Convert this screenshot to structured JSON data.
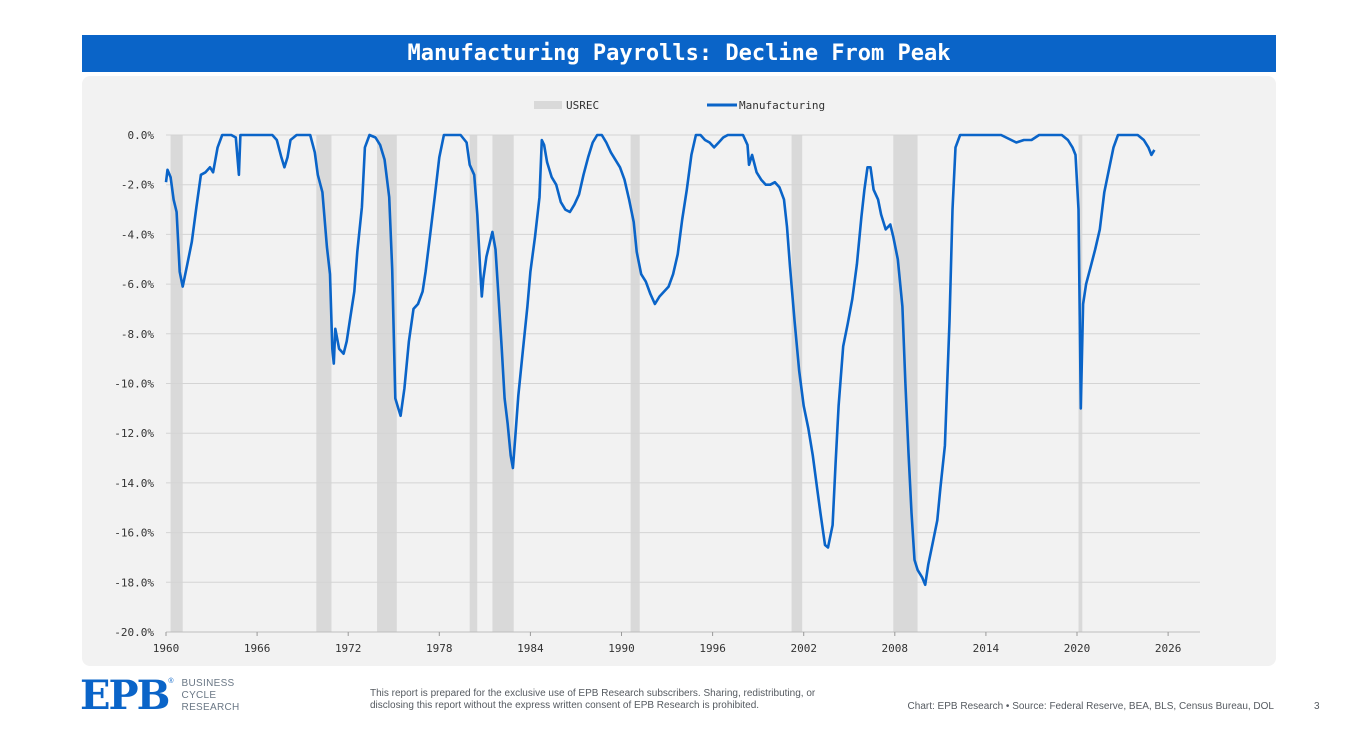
{
  "header": {
    "title": "Manufacturing Payrolls: Decline From Peak"
  },
  "footer": {
    "logo_text": "EPB",
    "logo_mark": "®",
    "logo_subtitle": [
      "BUSINESS",
      "CYCLE",
      "RESEARCH"
    ],
    "disclaimer": "This report is prepared for the exclusive use of EPB Research subscribers. Sharing, redistributing, or disclosing this report without the express written consent of EPB Research is prohibited.",
    "source": "Chart: EPB Research  •  Source: Federal Reserve, BEA, BLS, Census Bureau, DOL",
    "page_number": "3"
  },
  "colors": {
    "accent": "#0a64c8",
    "line": "#0a64c8",
    "recession": "#d9d9d9",
    "panel": "#f2f2f2"
  },
  "chart_data": {
    "type": "line",
    "title": "Manufacturing Payrolls: Decline From Peak",
    "xlabel": "",
    "ylabel": "",
    "xlim": [
      1960,
      2028.1
    ],
    "ylim": [
      -20,
      0
    ],
    "x_ticks": [
      "1960",
      "1966",
      "1972",
      "1978",
      "1984",
      "1990",
      "1996",
      "2002",
      "2008",
      "2014",
      "2020",
      "2026"
    ],
    "y_ticks": [
      "0.0%",
      "-2.0%",
      "-4.0%",
      "-6.0%",
      "-8.0%",
      "-10.0%",
      "-12.0%",
      "-14.0%",
      "-16.0%",
      "-18.0%",
      "-20.0%"
    ],
    "grid": true,
    "legend": {
      "position": "top",
      "entries": [
        "USREC",
        "Manufacturing"
      ]
    },
    "recessions": [
      {
        "start": 1960.3,
        "end": 1961.1
      },
      {
        "start": 1969.9,
        "end": 1970.9
      },
      {
        "start": 1973.9,
        "end": 1975.2
      },
      {
        "start": 1980.0,
        "end": 1980.5
      },
      {
        "start": 1981.5,
        "end": 1982.9
      },
      {
        "start": 1990.6,
        "end": 1991.2
      },
      {
        "start": 2001.2,
        "end": 2001.9
      },
      {
        "start": 2007.9,
        "end": 2009.5
      },
      {
        "start": 2020.1,
        "end": 2020.35
      }
    ],
    "series": [
      {
        "name": "Manufacturing",
        "points": [
          [
            1960.0,
            -1.9
          ],
          [
            1960.1,
            -1.4
          ],
          [
            1960.3,
            -1.7
          ],
          [
            1960.5,
            -2.6
          ],
          [
            1960.7,
            -3.1
          ],
          [
            1960.9,
            -5.5
          ],
          [
            1961.1,
            -6.1
          ],
          [
            1961.4,
            -5.2
          ],
          [
            1961.7,
            -4.3
          ],
          [
            1962.0,
            -2.9
          ],
          [
            1962.3,
            -1.6
          ],
          [
            1962.6,
            -1.5
          ],
          [
            1962.9,
            -1.3
          ],
          [
            1963.1,
            -1.5
          ],
          [
            1963.4,
            -0.5
          ],
          [
            1963.7,
            0.0
          ],
          [
            1964.0,
            0.0
          ],
          [
            1964.3,
            0.0
          ],
          [
            1964.6,
            -0.1
          ],
          [
            1964.8,
            -1.6
          ],
          [
            1964.9,
            0.0
          ],
          [
            1965.5,
            0.0
          ],
          [
            1966.5,
            0.0
          ],
          [
            1967.0,
            0.0
          ],
          [
            1967.3,
            -0.2
          ],
          [
            1967.6,
            -0.9
          ],
          [
            1967.8,
            -1.3
          ],
          [
            1968.0,
            -0.9
          ],
          [
            1968.2,
            -0.2
          ],
          [
            1968.6,
            0.0
          ],
          [
            1969.0,
            0.0
          ],
          [
            1969.5,
            0.0
          ],
          [
            1969.8,
            -0.7
          ],
          [
            1970.0,
            -1.6
          ],
          [
            1970.3,
            -2.3
          ],
          [
            1970.6,
            -4.5
          ],
          [
            1970.8,
            -5.6
          ],
          [
            1970.95,
            -8.6
          ],
          [
            1971.05,
            -9.2
          ],
          [
            1971.15,
            -7.8
          ],
          [
            1971.4,
            -8.6
          ],
          [
            1971.7,
            -8.8
          ],
          [
            1971.9,
            -8.3
          ],
          [
            1972.1,
            -7.5
          ],
          [
            1972.4,
            -6.3
          ],
          [
            1972.6,
            -4.7
          ],
          [
            1972.9,
            -2.9
          ],
          [
            1973.1,
            -0.5
          ],
          [
            1973.4,
            0.0
          ],
          [
            1973.8,
            -0.1
          ],
          [
            1974.1,
            -0.4
          ],
          [
            1974.4,
            -1.0
          ],
          [
            1974.7,
            -2.5
          ],
          [
            1974.9,
            -5.4
          ],
          [
            1975.1,
            -10.6
          ],
          [
            1975.3,
            -11.0
          ],
          [
            1975.45,
            -11.3
          ],
          [
            1975.7,
            -10.2
          ],
          [
            1976.0,
            -8.3
          ],
          [
            1976.3,
            -7.0
          ],
          [
            1976.6,
            -6.8
          ],
          [
            1976.9,
            -6.3
          ],
          [
            1977.1,
            -5.5
          ],
          [
            1977.4,
            -4.0
          ],
          [
            1977.7,
            -2.5
          ],
          [
            1978.0,
            -0.9
          ],
          [
            1978.3,
            0.0
          ],
          [
            1978.8,
            0.0
          ],
          [
            1979.4,
            0.0
          ],
          [
            1979.8,
            -0.3
          ],
          [
            1980.0,
            -1.2
          ],
          [
            1980.3,
            -1.6
          ],
          [
            1980.5,
            -3.2
          ],
          [
            1980.7,
            -5.5
          ],
          [
            1980.8,
            -6.5
          ],
          [
            1980.9,
            -5.8
          ],
          [
            1981.1,
            -4.9
          ],
          [
            1981.3,
            -4.4
          ],
          [
            1981.5,
            -3.9
          ],
          [
            1981.7,
            -4.6
          ],
          [
            1981.9,
            -6.5
          ],
          [
            1982.1,
            -8.5
          ],
          [
            1982.3,
            -10.6
          ],
          [
            1982.5,
            -11.6
          ],
          [
            1982.7,
            -12.9
          ],
          [
            1982.85,
            -13.4
          ],
          [
            1983.0,
            -12.2
          ],
          [
            1983.2,
            -10.5
          ],
          [
            1983.5,
            -8.7
          ],
          [
            1983.8,
            -6.9
          ],
          [
            1984.0,
            -5.5
          ],
          [
            1984.3,
            -4.1
          ],
          [
            1984.6,
            -2.5
          ],
          [
            1984.75,
            -0.2
          ],
          [
            1984.9,
            -0.4
          ],
          [
            1985.1,
            -1.1
          ],
          [
            1985.4,
            -1.7
          ],
          [
            1985.7,
            -2.0
          ],
          [
            1986.0,
            -2.7
          ],
          [
            1986.3,
            -3.0
          ],
          [
            1986.6,
            -3.1
          ],
          [
            1986.9,
            -2.8
          ],
          [
            1987.2,
            -2.4
          ],
          [
            1987.5,
            -1.6
          ],
          [
            1987.8,
            -0.9
          ],
          [
            1988.1,
            -0.3
          ],
          [
            1988.4,
            0.0
          ],
          [
            1988.7,
            0.0
          ],
          [
            1989.0,
            -0.3
          ],
          [
            1989.3,
            -0.7
          ],
          [
            1989.6,
            -1.0
          ],
          [
            1989.9,
            -1.3
          ],
          [
            1990.2,
            -1.8
          ],
          [
            1990.5,
            -2.6
          ],
          [
            1990.8,
            -3.5
          ],
          [
            1991.0,
            -4.7
          ],
          [
            1991.3,
            -5.6
          ],
          [
            1991.6,
            -5.9
          ],
          [
            1991.9,
            -6.4
          ],
          [
            1992.2,
            -6.8
          ],
          [
            1992.5,
            -6.5
          ],
          [
            1992.8,
            -6.3
          ],
          [
            1993.1,
            -6.1
          ],
          [
            1993.4,
            -5.6
          ],
          [
            1993.7,
            -4.8
          ],
          [
            1994.0,
            -3.4
          ],
          [
            1994.3,
            -2.2
          ],
          [
            1994.6,
            -0.8
          ],
          [
            1994.9,
            0.0
          ],
          [
            1995.2,
            0.0
          ],
          [
            1995.5,
            -0.2
          ],
          [
            1995.8,
            -0.3
          ],
          [
            1996.1,
            -0.5
          ],
          [
            1996.4,
            -0.3
          ],
          [
            1996.7,
            -0.1
          ],
          [
            1997.0,
            0.0
          ],
          [
            1997.5,
            0.0
          ],
          [
            1998.0,
            0.0
          ],
          [
            1998.3,
            -0.4
          ],
          [
            1998.4,
            -1.2
          ],
          [
            1998.6,
            -0.8
          ],
          [
            1998.9,
            -1.5
          ],
          [
            1999.2,
            -1.8
          ],
          [
            1999.5,
            -2.0
          ],
          [
            1999.8,
            -2.0
          ],
          [
            2000.1,
            -1.9
          ],
          [
            2000.4,
            -2.1
          ],
          [
            2000.7,
            -2.6
          ],
          [
            2000.9,
            -3.7
          ],
          [
            2001.1,
            -5.3
          ],
          [
            2001.4,
            -7.5
          ],
          [
            2001.7,
            -9.5
          ],
          [
            2002.0,
            -10.9
          ],
          [
            2002.3,
            -11.8
          ],
          [
            2002.6,
            -12.9
          ],
          [
            2002.9,
            -14.3
          ],
          [
            2003.1,
            -15.2
          ],
          [
            2003.4,
            -16.5
          ],
          [
            2003.6,
            -16.6
          ],
          [
            2003.9,
            -15.7
          ],
          [
            2004.1,
            -13.2
          ],
          [
            2004.3,
            -10.9
          ],
          [
            2004.6,
            -8.5
          ],
          [
            2004.9,
            -7.6
          ],
          [
            2005.2,
            -6.6
          ],
          [
            2005.5,
            -5.2
          ],
          [
            2005.8,
            -3.3
          ],
          [
            2006.0,
            -2.2
          ],
          [
            2006.2,
            -1.3
          ],
          [
            2006.4,
            -1.3
          ],
          [
            2006.6,
            -2.2
          ],
          [
            2006.9,
            -2.6
          ],
          [
            2007.1,
            -3.2
          ],
          [
            2007.4,
            -3.8
          ],
          [
            2007.7,
            -3.6
          ],
          [
            2007.9,
            -4.1
          ],
          [
            2008.2,
            -5.0
          ],
          [
            2008.5,
            -6.9
          ],
          [
            2008.7,
            -10.0
          ],
          [
            2008.9,
            -12.8
          ],
          [
            2009.1,
            -15.2
          ],
          [
            2009.3,
            -17.1
          ],
          [
            2009.5,
            -17.5
          ],
          [
            2009.8,
            -17.8
          ],
          [
            2010.0,
            -18.1
          ],
          [
            2010.2,
            -17.3
          ],
          [
            2010.5,
            -16.4
          ],
          [
            2010.8,
            -15.5
          ],
          [
            2011.0,
            -14.2
          ],
          [
            2011.3,
            -12.5
          ],
          [
            2011.6,
            -7.5
          ],
          [
            2011.8,
            -3.0
          ],
          [
            2012.0,
            -0.5
          ],
          [
            2012.3,
            0.0
          ],
          [
            2013.0,
            0.0
          ],
          [
            2014.0,
            0.0
          ],
          [
            2015.0,
            0.0
          ],
          [
            2016.0,
            -0.3
          ],
          [
            2016.5,
            -0.2
          ],
          [
            2017.0,
            -0.2
          ],
          [
            2017.5,
            0.0
          ],
          [
            2018.5,
            0.0
          ],
          [
            2019.0,
            0.0
          ],
          [
            2019.4,
            -0.2
          ],
          [
            2019.7,
            -0.5
          ],
          [
            2019.9,
            -0.8
          ],
          [
            2020.1,
            -3.0
          ],
          [
            2020.25,
            -11.0
          ],
          [
            2020.4,
            -6.8
          ],
          [
            2020.6,
            -6.0
          ],
          [
            2020.9,
            -5.3
          ],
          [
            2021.2,
            -4.6
          ],
          [
            2021.5,
            -3.8
          ],
          [
            2021.8,
            -2.3
          ],
          [
            2022.1,
            -1.4
          ],
          [
            2022.4,
            -0.5
          ],
          [
            2022.7,
            0.0
          ],
          [
            2023.0,
            0.0
          ],
          [
            2023.5,
            0.0
          ],
          [
            2024.0,
            0.0
          ],
          [
            2024.4,
            -0.2
          ],
          [
            2024.7,
            -0.5
          ],
          [
            2024.9,
            -0.8
          ],
          [
            2025.1,
            -0.6
          ]
        ]
      }
    ]
  }
}
